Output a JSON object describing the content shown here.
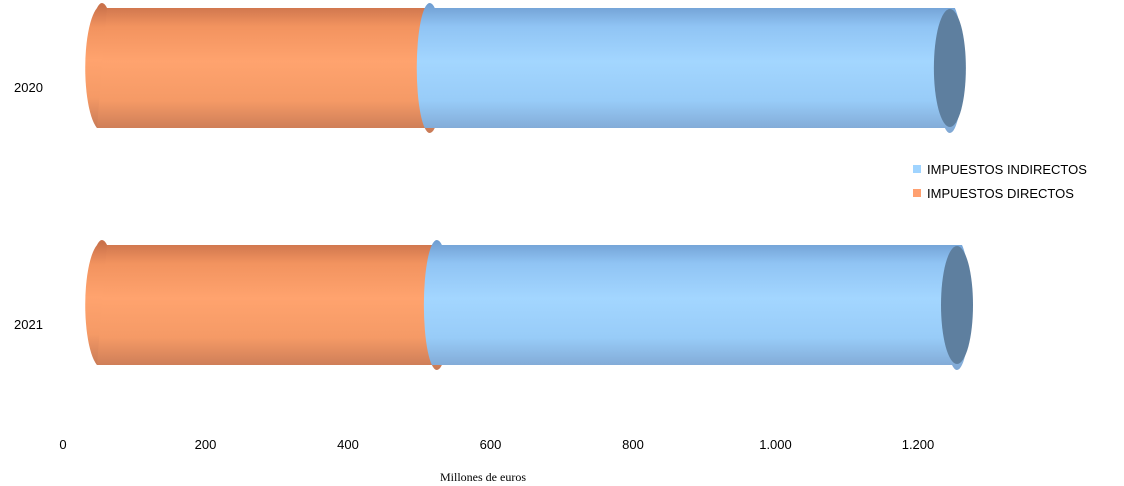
{
  "chart_data": {
    "type": "bar",
    "orientation": "horizontal",
    "style": "3d-cylinder",
    "stacked": true,
    "categories": [
      "2020",
      "2021"
    ],
    "series": [
      {
        "name": "IMPUESTOS DIRECTOS",
        "color": "#FFA070",
        "values": [
          460,
          470
        ]
      },
      {
        "name": "IMPUESTOS INDIRECTOS",
        "color": "#A0D4FF",
        "values": [
          730,
          730
        ]
      }
    ],
    "x_ticks": [
      "0",
      "200",
      "400",
      "600",
      "800",
      "1.000",
      "1.200"
    ],
    "x_tick_values": [
      0,
      200,
      400,
      600,
      800,
      1000,
      1200
    ],
    "xlim": [
      0,
      1200
    ],
    "xlabel": "Millones de euros",
    "legend_position": "right",
    "legend_order": [
      "IMPUESTOS INDIRECTOS",
      "IMPUESTOS DIRECTOS"
    ],
    "grid": false
  }
}
